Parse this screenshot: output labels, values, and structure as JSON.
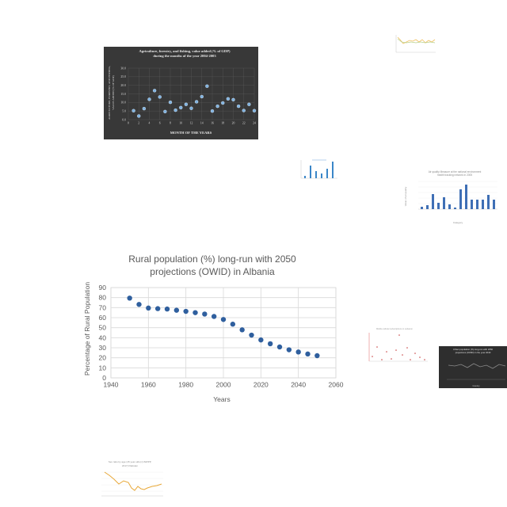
{
  "charts": {
    "agri": {
      "title_line1": "Agriculture, forestry, and fishing, value added (% of GDP)",
      "title_line2": "during the months of the year 2004-2003",
      "xlabel": "MONTH OF THE YEARS",
      "ylabel_line1": "AGRICULTURE, FORESTRY, AND FISHING,",
      "ylabel_line2": "VALUE ADDED (% OF GDP)",
      "colors": {
        "background": "#383838",
        "marker": "#7fb2e0",
        "text": "#e6e6e6"
      }
    },
    "rural": {
      "title_line1": "Rural population (%) long-run with 2050",
      "title_line2": "projections (OWID) in Albania",
      "xlabel": "Years",
      "ylabel": "Percentage of Rural Population",
      "colors": {
        "marker": "#2f5f9e",
        "grid": "#d9d9d9",
        "text": "#595959"
      }
    },
    "small_bar_title": "Air quality Measure at the national environment",
    "small_bar_subtitle": "health tracking network in 2005",
    "small_bar_ylabel": "Value of air quality",
    "small_bar_xlabel": "Category",
    "scatter_title": "Mobile cellular subscriptions in Lebanon",
    "dark_title_line1": "Urban population (%) long-run with 2050",
    "dark_title_line2": "projections (OWID) in the year 2040",
    "dark_xlabel": "Country",
    "sex_title_line1": "Sex ratio by age (15 year olds) (UNWPP,",
    "sex_title_line2": "2017) Pakistan"
  },
  "chart_data": [
    {
      "type": "scatter",
      "title": "Agriculture, forestry, and fishing, value added (% of GDP) during the months of the year 2004-2003",
      "xlabel": "MONTH OF THE YEARS",
      "ylabel": "AGRICULTURE, FORESTRY, AND FISHING, VALUE ADDED (% OF GDP)",
      "xlim": [
        0,
        24
      ],
      "ylim": [
        0,
        30
      ],
      "xticks": [
        0,
        2,
        4,
        6,
        8,
        10,
        12,
        14,
        16,
        18,
        20,
        22,
        24
      ],
      "yticks": [
        0.0,
        5.0,
        10.0,
        15.0,
        20.0,
        25.0,
        30.0
      ],
      "x": [
        1,
        2,
        3,
        4,
        5,
        6,
        7,
        8,
        9,
        10,
        11,
        12,
        13,
        14,
        15,
        16,
        17,
        18,
        19,
        20,
        21,
        22,
        23,
        24
      ],
      "y": [
        5.2,
        2.1,
        6.4,
        11.8,
        16.9,
        13.2,
        4.7,
        10.1,
        5.5,
        7.0,
        8.9,
        6.6,
        10.4,
        13.4,
        19.5,
        5.0,
        7.8,
        9.7,
        12.1,
        11.6,
        7.8,
        5.3,
        8.9,
        5.2
      ],
      "grid": true
    },
    {
      "type": "scatter",
      "title": "Rural population (%) long-run with 2050 projections (OWID) in Albania",
      "xlabel": "Years",
      "ylabel": "Percentage of Rural Population",
      "xlim": [
        1940,
        2060
      ],
      "ylim": [
        0,
        90
      ],
      "xticks": [
        1940,
        1960,
        1980,
        2000,
        2020,
        2040,
        2060
      ],
      "yticks": [
        0,
        10,
        20,
        30,
        40,
        50,
        60,
        70,
        80,
        90
      ],
      "x": [
        1950,
        1955,
        1960,
        1965,
        1970,
        1975,
        1980,
        1985,
        1990,
        1995,
        2000,
        2005,
        2010,
        2015,
        2020,
        2025,
        2030,
        2035,
        2040,
        2045,
        2050
      ],
      "y": [
        79.5,
        73.2,
        69.6,
        69.0,
        68.6,
        67.4,
        66.3,
        65.0,
        63.6,
        61.2,
        58.2,
        53.5,
        47.9,
        42.6,
        37.8,
        34.0,
        30.8,
        28.0,
        25.8,
        23.8,
        22.1
      ],
      "grid": true
    }
  ]
}
